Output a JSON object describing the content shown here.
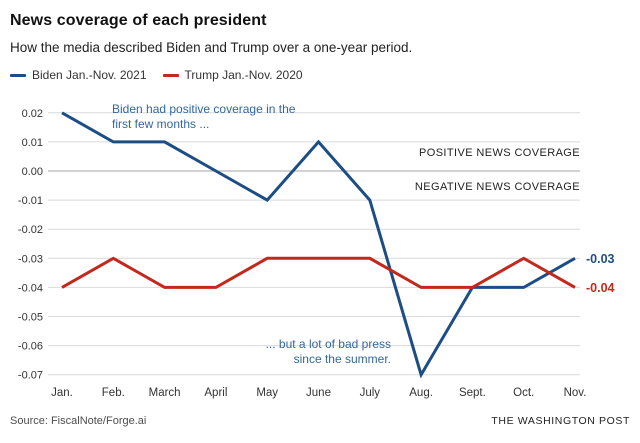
{
  "header": {
    "title": "News coverage of each president",
    "subtitle": "How the media described Biden and Trump over a one-year period."
  },
  "legend": [
    {
      "label": "Biden Jan.-Nov. 2021",
      "color": "#1d4d85"
    },
    {
      "label": "Trump Jan.-Nov. 2020",
      "color": "#c2281c"
    }
  ],
  "chart_data": {
    "type": "line",
    "title": "News coverage of each president",
    "xlabel": "",
    "ylabel": "",
    "categories": [
      "Jan.",
      "Feb.",
      "March",
      "April",
      "May",
      "June",
      "July",
      "Aug.",
      "Sept.",
      "Oct.",
      "Nov."
    ],
    "series": [
      {
        "name": "Biden Jan.-Nov. 2021",
        "color": "#1d4d85",
        "values": [
          0.02,
          0.01,
          0.01,
          0,
          -0.01,
          0.01,
          -0.01,
          -0.07,
          -0.04,
          -0.04,
          -0.03
        ],
        "end_label": "-0.03"
      },
      {
        "name": "Trump Jan.-Nov. 2020",
        "color": "#c2281c",
        "values": [
          -0.04,
          -0.03,
          -0.04,
          -0.04,
          -0.03,
          -0.03,
          -0.03,
          -0.04,
          -0.04,
          -0.03,
          -0.04
        ],
        "end_label": "-0.04"
      }
    ],
    "ylim": [
      -0.07,
      0.02
    ],
    "ytick_step": 0.01,
    "yticks": [
      "0.02",
      "0.01",
      "0.00",
      "-0.01",
      "-0.02",
      "-0.03",
      "-0.04",
      "-0.05",
      "-0.06",
      "-0.07"
    ],
    "grid": true,
    "legend_position": "top-left",
    "region_labels": {
      "positive": "POSITIVE NEWS COVERAGE",
      "negative": "NEGATIVE NEWS COVERAGE"
    },
    "annotations": [
      {
        "lines": [
          "Biden had positive coverage in the",
          "first few months ..."
        ],
        "align": "left"
      },
      {
        "lines": [
          "... but a lot of bad press",
          "since the summer."
        ],
        "align": "right"
      }
    ]
  },
  "footer": {
    "source": "Source: FiscalNote/Forge.ai",
    "credit": "THE WASHINGTON POST"
  }
}
